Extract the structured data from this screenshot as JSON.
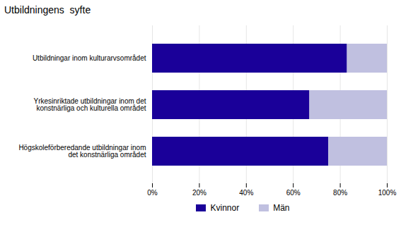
{
  "chart_data": {
    "type": "bar",
    "title": "Utbildningens  syfte",
    "orientation": "horizontal",
    "stacked": true,
    "categories": [
      "Utbildningar inom kulturarvsområdet",
      "Yrkesinriktade utbildningar inom det\nkonstnärliga och kulturella området",
      "Högskoleförberedande utbildningar inom\n det konstnärliga området"
    ],
    "series": [
      {
        "name": "Kvinnor",
        "color": "#1a0099",
        "values": [
          83,
          67,
          75
        ]
      },
      {
        "name": "Män",
        "color": "#c0c0e0",
        "values": [
          17,
          33,
          25
        ]
      }
    ],
    "xlim": [
      0,
      100
    ],
    "xticks": [
      {
        "value": 0,
        "label": "0%"
      },
      {
        "value": 20,
        "label": "20%"
      },
      {
        "value": 40,
        "label": "40%"
      },
      {
        "value": 60,
        "label": "60%"
      },
      {
        "value": 80,
        "label": "80%"
      },
      {
        "value": 100,
        "label": "100%"
      }
    ],
    "grid": true,
    "legend": "bottom"
  }
}
